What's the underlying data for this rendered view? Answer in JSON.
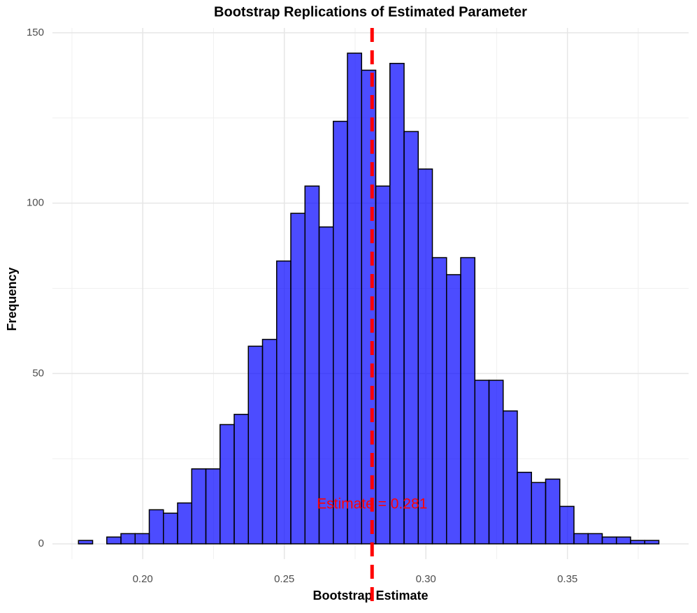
{
  "chart_data": {
    "type": "histogram",
    "title": "Bootstrap Replications of Estimated Parameter",
    "x_label": "Bootstrap Estimate",
    "y_label": "Frequency",
    "bins": [
      0.1773,
      0.1823,
      0.1873,
      0.1923,
      0.1973,
      0.2023,
      0.2073,
      0.2123,
      0.2173,
      0.2223,
      0.2273,
      0.2323,
      0.2373,
      0.2423,
      0.2473,
      0.2523,
      0.2573,
      0.2623,
      0.2673,
      0.2723,
      0.2773,
      0.2823,
      0.2873,
      0.2923,
      0.2973,
      0.3023,
      0.3073,
      0.3123,
      0.3173,
      0.3223,
      0.3273,
      0.3323,
      0.3373,
      0.3423,
      0.3473,
      0.3523,
      0.3573,
      0.3623,
      0.3673,
      0.3723,
      0.3773,
      0.3823
    ],
    "values": [
      1,
      0,
      2,
      3,
      3,
      10,
      9,
      12,
      22,
      22,
      35,
      38,
      58,
      60,
      83,
      97,
      105,
      93,
      124,
      144,
      139,
      105,
      141,
      121,
      110,
      84,
      79,
      84,
      48,
      48,
      39,
      21,
      18,
      19,
      11,
      3,
      3,
      2,
      2,
      1,
      1
    ],
    "color": "#0000ff",
    "opacity": 0.7,
    "edge_color": "#000000",
    "xlim": [
      0.1681,
      0.3928
    ],
    "ylim": [
      -4.5,
      151.4
    ],
    "xticks": [
      {
        "value": 0.2,
        "label": "0.20"
      },
      {
        "value": 0.25,
        "label": "0.25"
      },
      {
        "value": 0.3,
        "label": "0.30"
      },
      {
        "value": 0.35,
        "label": "0.35"
      }
    ],
    "yticks": [
      0,
      50,
      100,
      150
    ],
    "x_minor_grid": [
      0.175,
      0.225,
      0.275,
      0.325,
      0.375
    ],
    "y_minor_grid": [
      25,
      75,
      125
    ],
    "grid": true,
    "vline": {
      "value": 0.281,
      "color": "#ff0000"
    },
    "annotation": {
      "text": "Estimate = 0.281",
      "x": 0.281,
      "y": 11.5,
      "color": "#ff0000"
    }
  }
}
